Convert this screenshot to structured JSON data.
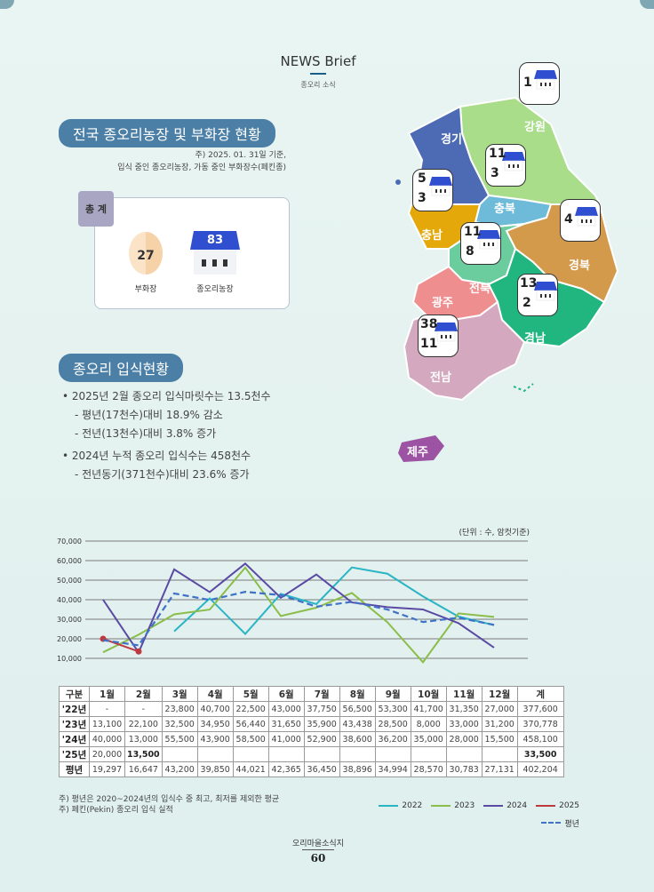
{
  "header": {
    "title": "NEWS Brief",
    "subtitle": "종오리 소식"
  },
  "section1": {
    "title": "전국 종오리농장 및 부화장 현황",
    "note_line1": "주) 2025. 01. 31일 기준,",
    "note_line2": "입식 중인 종오리농장, 가동 중인 부화장수(페킨종)"
  },
  "total": {
    "tag": "총 계",
    "hatchery_count": "27",
    "hatchery_label": "부화장",
    "farm_count": "83",
    "farm_label": "종오리농장"
  },
  "section2": {
    "title": "종오리 입식현황",
    "bullets": [
      "• 2025년 2월 종오리 입식마릿수는 13.5천수",
      "- 평년(17천수)대비 18.9% 감소",
      "- 전년(13천수)대비 3.8% 증가",
      "• 2024년 누적 종오리 입식수는 458천수",
      "- 전년동기(371천수)대비 23.6% 증가"
    ]
  },
  "map": {
    "regions": {
      "gyeonggi": "경기",
      "gangwon": "강원",
      "chungbuk": "충북",
      "chungnam": "충남",
      "jeonbuk": "전북",
      "gyeongbuk": "경북",
      "gwangju": "광주",
      "gyeongnam": "경남",
      "jeonnam": "전남",
      "jeju": "제주"
    },
    "badges": {
      "gangwon": {
        "farms": "1",
        "hatcheries": ""
      },
      "chungbuk": {
        "farms": "11",
        "hatcheries": "3"
      },
      "chungnam": {
        "farms": "5",
        "hatcheries": "3"
      },
      "gyeongbuk": {
        "farms": "4",
        "hatcheries": ""
      },
      "jeonbuk": {
        "farms": "11",
        "hatcheries": "8"
      },
      "gyeongnam": {
        "farms": "13",
        "hatcheries": "2"
      },
      "jeonnam": {
        "farms": "38",
        "hatcheries": "11"
      }
    },
    "colors": {
      "gyeonggi": "#4c6bb4",
      "gangwon": "#a9dd8a",
      "chungbuk": "#6dbbd9",
      "chungnam": "#e5a80b",
      "jeonbuk": "#6bcc9e",
      "gyeongbuk": "#d49a4c",
      "gwangju": "#ef8e8e",
      "gyeongnam": "#21b67f",
      "jeonnam": "#d4a9bf",
      "jeju": "#9c53a3",
      "farm_roof": "#2f4fd0"
    }
  },
  "chart_data": {
    "type": "line",
    "unit_note": "(단위 : 수, 암컷기준)",
    "categories": [
      "1월",
      "2월",
      "3월",
      "4월",
      "5월",
      "6월",
      "7월",
      "8월",
      "9월",
      "10월",
      "11월",
      "12월"
    ],
    "yticks": [
      "70,000",
      "60,000",
      "50,000",
      "40,000",
      "30,000",
      "20,000",
      "10,000"
    ],
    "ylim": [
      0,
      70000
    ],
    "series": [
      {
        "name": "2022",
        "color": "#2ab5c4",
        "dashed": false,
        "values": [
          null,
          null,
          23800,
          40700,
          22500,
          43000,
          37750,
          56500,
          53300,
          41700,
          31350,
          27000
        ]
      },
      {
        "name": "2023",
        "color": "#8bbd4a",
        "dashed": false,
        "values": [
          13100,
          22100,
          32500,
          34950,
          56440,
          31650,
          35900,
          43438,
          28500,
          8000,
          33000,
          31200
        ]
      },
      {
        "name": "2024",
        "color": "#5a4aa3",
        "dashed": false,
        "values": [
          40000,
          13000,
          55500,
          43900,
          58500,
          41000,
          52900,
          38600,
          36200,
          35000,
          28000,
          15500
        ]
      },
      {
        "name": "2025",
        "color": "#c0393f",
        "dashed": false,
        "values": [
          20000,
          13500,
          null,
          null,
          null,
          null,
          null,
          null,
          null,
          null,
          null,
          null
        ]
      },
      {
        "name": "평년",
        "color": "#3f72c8",
        "dashed": true,
        "values": [
          19297,
          16647,
          43200,
          39850,
          44021,
          42365,
          36450,
          38896,
          34994,
          28570,
          30783,
          27131
        ]
      }
    ]
  },
  "table": {
    "headers": [
      "구분",
      "1월",
      "2월",
      "3월",
      "4월",
      "5월",
      "6월",
      "7월",
      "8월",
      "9월",
      "10월",
      "11월",
      "12월",
      "계"
    ],
    "rows": [
      [
        "'22년",
        "-",
        "-",
        "23,800",
        "40,700",
        "22,500",
        "43,000",
        "37,750",
        "56,500",
        "53,300",
        "41,700",
        "31,350",
        "27,000",
        "377,600"
      ],
      [
        "'23년",
        "13,100",
        "22,100",
        "32,500",
        "34,950",
        "56,440",
        "31,650",
        "35,900",
        "43,438",
        "28,500",
        "8,000",
        "33,000",
        "31,200",
        "370,778"
      ],
      [
        "'24년",
        "40,000",
        "13,000",
        "55,500",
        "43,900",
        "58,500",
        "41,000",
        "52,900",
        "38,600",
        "36,200",
        "35,000",
        "28,000",
        "15,500",
        "458,100"
      ],
      [
        "'25년",
        "20,000",
        "13,500",
        "",
        "",
        "",
        "",
        "",
        "",
        "",
        "",
        "",
        "",
        "33,500"
      ],
      [
        "평년",
        "19,297",
        "16,647",
        "43,200",
        "39,850",
        "44,021",
        "42,365",
        "36,450",
        "38,896",
        "34,994",
        "28,570",
        "30,783",
        "27,131",
        "402,204"
      ]
    ]
  },
  "footnotes": [
    "주) 평년은 2020~2024년의 입식수 중 최고, 최저를 제외한 평균",
    "주) 페킨(Pekin) 종오리 입식 실적"
  ],
  "footer": {
    "title": "오리마을소식지",
    "page": "60"
  }
}
